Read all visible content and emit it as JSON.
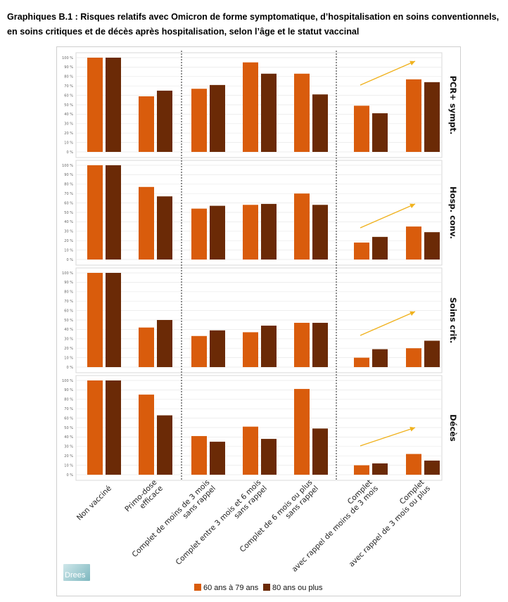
{
  "title": "Graphiques B.1 : Risques relatifs avec Omicron de forme symptomatique, d’hospitalisation en soins conventionnels, en soins critiques et de décès après hospitalisation, selon l’âge et le statut vaccinal",
  "logo_text": "Drees",
  "colors": {
    "s1": "#D95C0C",
    "s2": "#6B2A06",
    "arrow": "#F0B21E",
    "grid": "#e8e8e8",
    "divider": "#222222"
  },
  "chart_data": {
    "type": "bar",
    "categories": [
      [
        "Non vacciné"
      ],
      [
        "Primo-dose",
        "efficace"
      ],
      [
        "Complet de moins de 3 mois",
        "sans rappel"
      ],
      [
        "Complet entre 3 mois et 6 mois",
        "sans rappel"
      ],
      [
        "Complet de 6 mois ou plus",
        "sans rappel"
      ],
      [
        "Complet",
        "avec rappel de moins de 3 mois"
      ],
      [
        "Complet",
        "avec rappel de 3 mois ou plus"
      ]
    ],
    "yticks": [
      "0 %",
      "10 %",
      "20 %",
      "30 %",
      "40 %",
      "50 %",
      "60 %",
      "70 %",
      "80 %",
      "90 %",
      "100 %"
    ],
    "ylim": [
      0,
      100
    ],
    "legend": [
      "60 ans à 79 ans",
      "80 ans ou plus"
    ],
    "legend_position": "bottom",
    "panels": [
      {
        "label": "PCR+ sympt.",
        "series": [
          {
            "name": "60 ans à 79 ans",
            "values": [
              100,
              59,
              67,
              95,
              83,
              49,
              77
            ]
          },
          {
            "name": "80 ans ou plus",
            "values": [
              100,
              65,
              71,
              83,
              61,
              41,
              74
            ]
          }
        ]
      },
      {
        "label": "Hosp. conv.",
        "series": [
          {
            "name": "60 ans à 79 ans",
            "values": [
              100,
              77,
              54,
              58,
              70,
              18,
              35
            ]
          },
          {
            "name": "80 ans ou plus",
            "values": [
              100,
              67,
              57,
              59,
              58,
              24,
              29
            ]
          }
        ]
      },
      {
        "label": "Soins crit.",
        "series": [
          {
            "name": "60 ans à 79 ans",
            "values": [
              100,
              42,
              33,
              37,
              47,
              10,
              20
            ]
          },
          {
            "name": "80 ans ou plus",
            "values": [
              100,
              50,
              39,
              44,
              47,
              19,
              28
            ]
          }
        ]
      },
      {
        "label": "Décès",
        "series": [
          {
            "name": "60 ans à 79 ans",
            "values": [
              100,
              85,
              41,
              51,
              91,
              10,
              22
            ]
          },
          {
            "name": "80 ans ou plus",
            "values": [
              100,
              63,
              35,
              38,
              49,
              12,
              15
            ]
          }
        ]
      }
    ]
  }
}
